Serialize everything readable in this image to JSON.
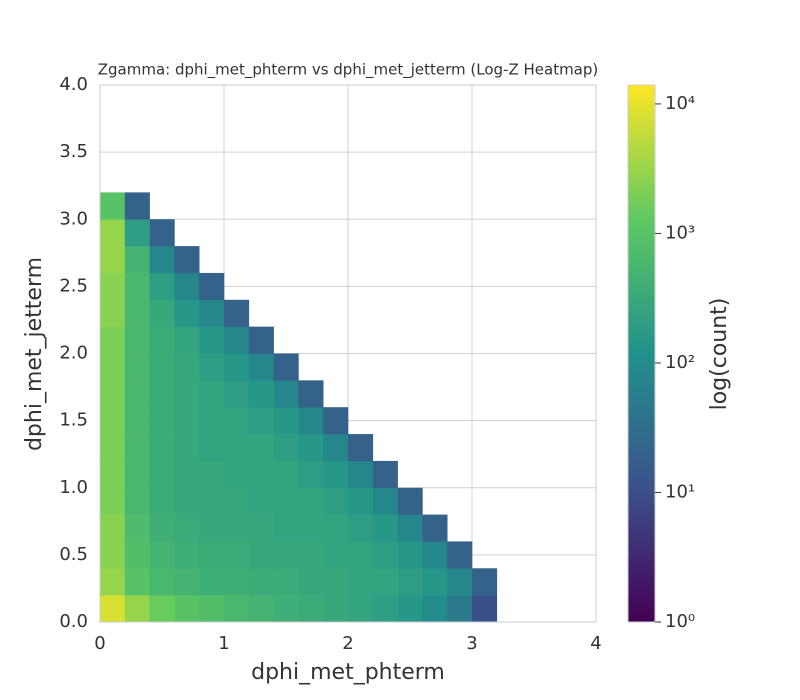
{
  "chart_data": {
    "type": "heatmap",
    "title": "Zgamma: dphi_met_phterm vs dphi_met_jetterm (Log-Z Heatmap)",
    "xlabel": "dphi_met_phterm",
    "ylabel": "dphi_met_jetterm",
    "colorbar_label": "log(count)",
    "xlim": [
      0,
      4
    ],
    "ylim": [
      0,
      4
    ],
    "xticks": [
      0,
      1,
      2,
      3,
      4
    ],
    "yticks": [
      {
        "value": 0,
        "label": "0.0"
      },
      {
        "value": 0.5,
        "label": "0.5"
      },
      {
        "value": 1,
        "label": "1.0"
      },
      {
        "value": 1.5,
        "label": "1.5"
      },
      {
        "value": 2,
        "label": "2.0"
      },
      {
        "value": 2.5,
        "label": "2.5"
      },
      {
        "value": 3,
        "label": "3.0"
      },
      {
        "value": 3.5,
        "label": "3.5"
      },
      {
        "value": 4,
        "label": "4.0"
      }
    ],
    "grid": true,
    "colormap": "viridis",
    "log_color": true,
    "clim": [
      1,
      14000
    ],
    "cticks": [
      {
        "value": 1,
        "label": "10⁰"
      },
      {
        "value": 10,
        "label": "10¹"
      },
      {
        "value": 100,
        "label": "10²"
      },
      {
        "value": 1000,
        "label": "10³"
      },
      {
        "value": 10000,
        "label": "10⁴"
      }
    ],
    "xbins": [
      0,
      0.2,
      0.4,
      0.6,
      0.8,
      1,
      1.2,
      1.4,
      1.6,
      1.8,
      2,
      2.2,
      2.4,
      2.6,
      2.8,
      3,
      3.2
    ],
    "ybins": [
      0,
      0.2,
      0.4,
      0.6,
      0.8,
      1,
      1.2,
      1.4,
      1.6,
      1.8,
      2,
      2.2,
      2.4,
      2.6,
      2.8,
      3,
      3.2
    ],
    "z": [
      [
        8000,
        3000,
        1500,
        1000,
        800,
        600,
        500,
        400,
        350,
        300,
        250,
        200,
        150,
        100,
        50,
        10
      ],
      [
        3000,
        1000,
        600,
        500,
        400,
        400,
        350,
        350,
        300,
        300,
        250,
        250,
        200,
        150,
        80,
        20
      ],
      [
        2500,
        800,
        500,
        400,
        350,
        350,
        300,
        300,
        300,
        250,
        250,
        200,
        150,
        80,
        20,
        null
      ],
      [
        2500,
        700,
        400,
        350,
        300,
        300,
        300,
        250,
        250,
        250,
        200,
        150,
        80,
        20,
        null,
        null
      ],
      [
        2000,
        600,
        350,
        300,
        300,
        300,
        250,
        250,
        250,
        200,
        150,
        80,
        20,
        null,
        null,
        null
      ],
      [
        2000,
        600,
        350,
        300,
        300,
        250,
        250,
        250,
        200,
        150,
        80,
        20,
        null,
        null,
        null,
        null
      ],
      [
        2000,
        600,
        350,
        300,
        250,
        250,
        250,
        200,
        150,
        80,
        20,
        null,
        null,
        null,
        null,
        null
      ],
      [
        2000,
        600,
        350,
        300,
        250,
        250,
        200,
        150,
        80,
        20,
        null,
        null,
        null,
        null,
        null,
        null
      ],
      [
        2000,
        600,
        350,
        300,
        250,
        200,
        150,
        80,
        20,
        null,
        null,
        null,
        null,
        null,
        null,
        null
      ],
      [
        2000,
        600,
        350,
        300,
        200,
        150,
        80,
        20,
        null,
        null,
        null,
        null,
        null,
        null,
        null,
        null
      ],
      [
        2000,
        600,
        350,
        250,
        150,
        80,
        20,
        null,
        null,
        null,
        null,
        null,
        null,
        null,
        null,
        null
      ],
      [
        2500,
        600,
        300,
        150,
        80,
        20,
        null,
        null,
        null,
        null,
        null,
        null,
        null,
        null,
        null,
        null
      ],
      [
        2500,
        600,
        200,
        80,
        20,
        null,
        null,
        null,
        null,
        null,
        null,
        null,
        null,
        null,
        null,
        null
      ],
      [
        3000,
        500,
        80,
        20,
        null,
        null,
        null,
        null,
        null,
        null,
        null,
        null,
        null,
        null,
        null,
        null
      ],
      [
        3000,
        200,
        20,
        null,
        null,
        null,
        null,
        null,
        null,
        null,
        null,
        null,
        null,
        null,
        null,
        null
      ],
      [
        1000,
        20,
        null,
        null,
        null,
        null,
        null,
        null,
        null,
        null,
        null,
        null,
        null,
        null,
        null,
        null
      ]
    ]
  }
}
